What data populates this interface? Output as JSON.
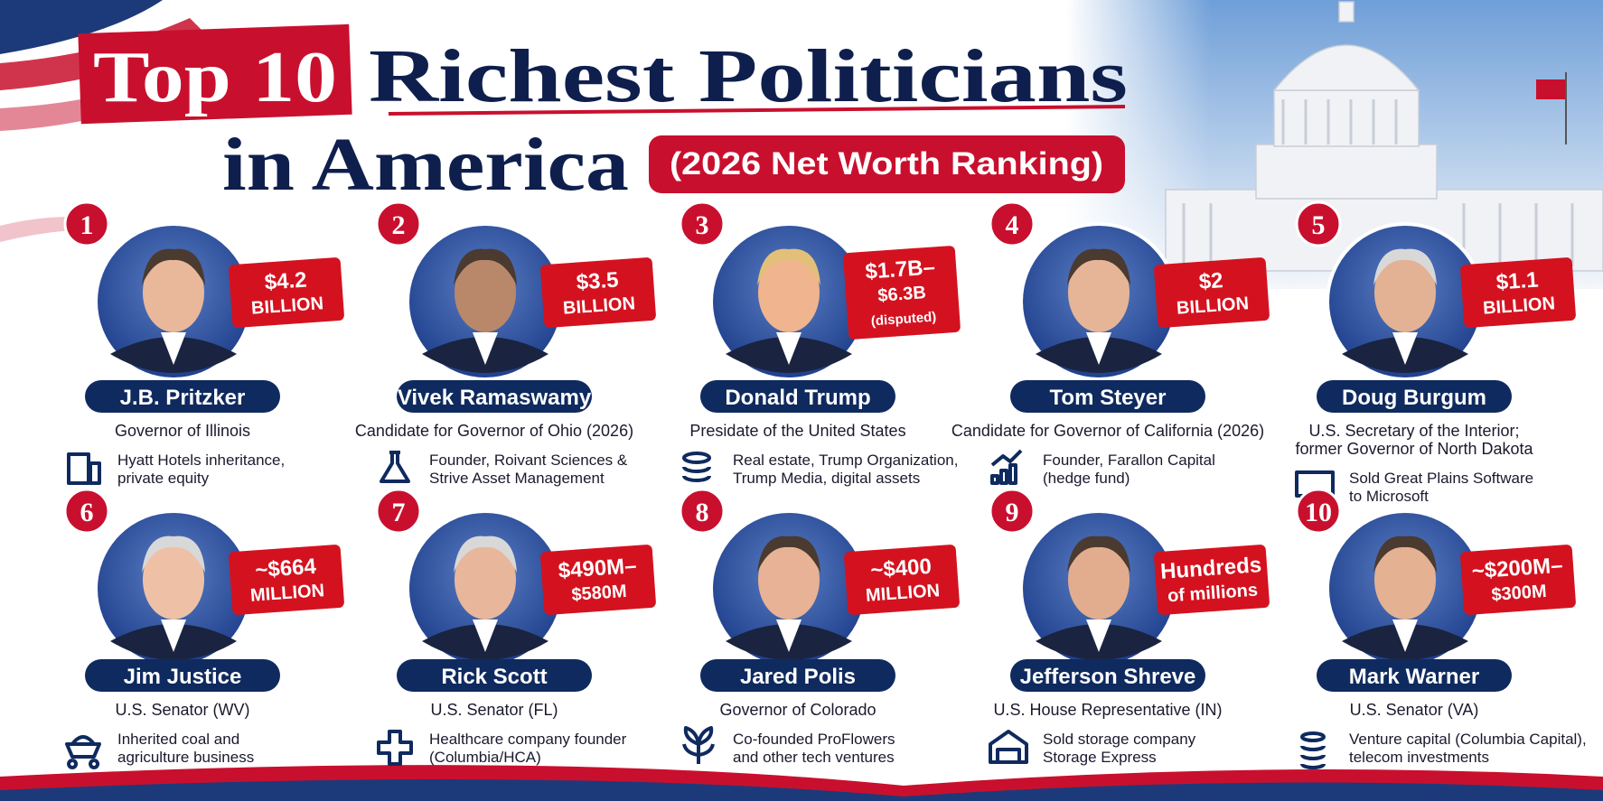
{
  "header": {
    "title_highlight": "Top 10",
    "title_rest": "Richest Politicians",
    "title_line2": "in America",
    "subtitle": "(2026 Net Worth Ranking)"
  },
  "entries": [
    {
      "rank": 1,
      "name": "J.B. Pritzker",
      "role": [
        "Governor of Illinois"
      ],
      "worth": [
        "$4.2",
        "BILLION"
      ],
      "source": [
        "Hyatt Hotels inheritance,",
        "private equity"
      ]
    },
    {
      "rank": 2,
      "name": "Vivek Ramaswamy",
      "role": [
        "Candidate for Governor of Ohio (2026)"
      ],
      "worth": [
        "$3.5",
        "BILLION"
      ],
      "source": [
        "Founder, Roivant Sciences &",
        "Strive Asset Management"
      ]
    },
    {
      "rank": 3,
      "name": "Donald Trump",
      "role": [
        "Presidate of the United States"
      ],
      "worth": [
        "$1.7B–",
        "$6.3B",
        "(disputed)"
      ],
      "source": [
        "Real estate, Trump Organization,",
        "Trump Media, digital assets"
      ]
    },
    {
      "rank": 4,
      "name": "Tom Steyer",
      "role": [
        "Candidate for Governor of California (2026)"
      ],
      "worth": [
        "$2",
        "BILLION"
      ],
      "source": [
        "Founder, Farallon Capital",
        "(hedge fund)"
      ]
    },
    {
      "rank": 5,
      "name": "Doug Burgum",
      "role": [
        "U.S. Secretary of the Interior;",
        "former Governor of North Dakota"
      ],
      "worth": [
        "$1.1",
        "BILLION"
      ],
      "source": [
        "Sold Great Plains Software",
        "to Microsoft"
      ]
    },
    {
      "rank": 6,
      "name": "Jim Justice",
      "role": [
        "U.S. Senator (WV)"
      ],
      "worth": [
        "~$664",
        "MILLION"
      ],
      "source": [
        "Inherited coal and",
        "agriculture business"
      ]
    },
    {
      "rank": 7,
      "name": "Rick Scott",
      "role": [
        "U.S. Senator (FL)"
      ],
      "worth": [
        "$490M–",
        "$580M"
      ],
      "source": [
        "Healthcare company founder",
        "(Columbia/HCA)"
      ]
    },
    {
      "rank": 8,
      "name": "Jared Polis",
      "role": [
        "Governor of Colorado"
      ],
      "worth": [
        "~$400",
        "MILLION"
      ],
      "source": [
        "Co-founded ProFlowers",
        "and other tech ventures"
      ]
    },
    {
      "rank": 9,
      "name": "Jefferson Shreve",
      "role": [
        "U.S. House Representative (IN)"
      ],
      "worth": [
        "Hundreds",
        "of millions"
      ],
      "source": [
        "Sold storage company",
        "Storage Express"
      ]
    },
    {
      "rank": 10,
      "name": "Mark Warner",
      "role": [
        "U.S. Senator (VA)"
      ],
      "worth": [
        "~$200M–",
        "$300M"
      ],
      "source": [
        "Venture capital (Columbia Capital),",
        "telecom investments"
      ]
    }
  ]
}
